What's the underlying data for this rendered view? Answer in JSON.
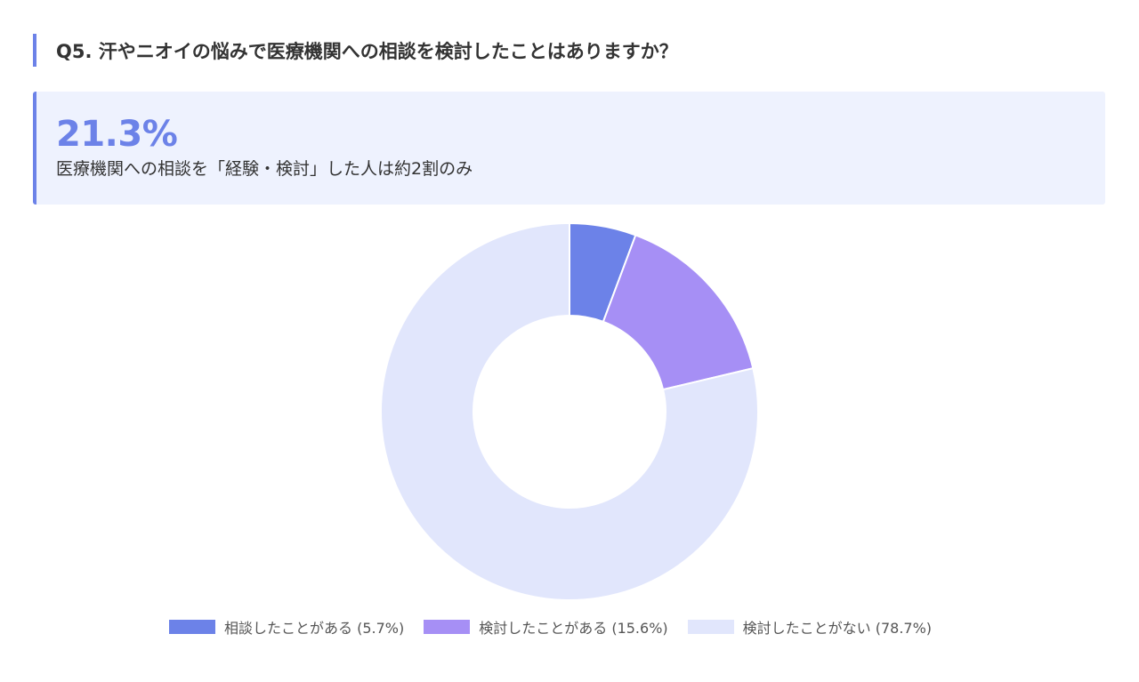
{
  "question": {
    "title": "Q5. 汗やニオイの悩みで医療機関への相談を検討したことはありますか？"
  },
  "highlight": {
    "value": "21.3%",
    "caption": "医療機関への相談を「経験・検討」した人は約2割のみ"
  },
  "colors": {
    "accent": "#6c82e8",
    "highlight_bg": "#eef2fe"
  },
  "chart_data": {
    "type": "pie",
    "donut": true,
    "start_angle_deg": 0,
    "direction": "clockwise",
    "slices": [
      {
        "label": "相談したことがある",
        "value": 5.7,
        "color": "#6c82e8"
      },
      {
        "label": "検討したことがある",
        "value": 15.6,
        "color": "#a68ff5"
      },
      {
        "label": "検討したことがない",
        "value": 78.7,
        "color": "#e1e6fc"
      }
    ],
    "legend": {
      "position": "bottom",
      "items": [
        "相談したことがある (5.7%)",
        "検討したことがある (15.6%)",
        "検討したことがない (78.7%)"
      ]
    }
  }
}
